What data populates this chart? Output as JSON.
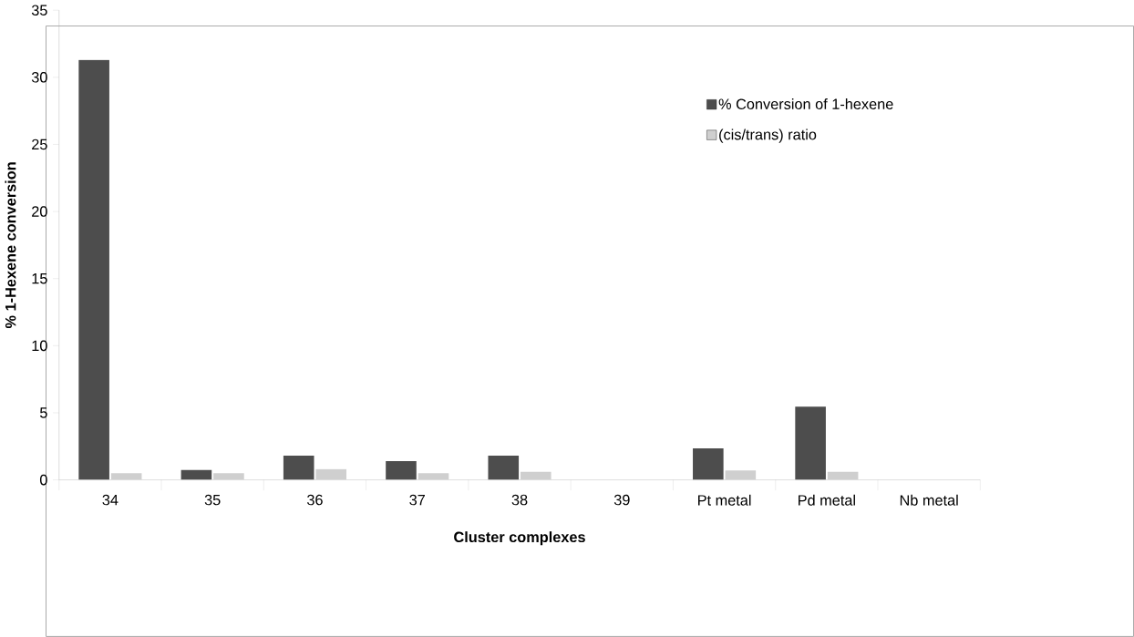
{
  "chart_data": {
    "type": "bar",
    "xlabel": "Cluster complexes",
    "ylabel": "% 1-Hexene conversion",
    "categories": [
      "34",
      "35",
      "36",
      "37",
      "38",
      "39",
      "Pt metal",
      "Pd metal",
      "Nb metal"
    ],
    "series": [
      {
        "name": "% Conversion of 1-hexene",
        "color": "#4d4d4d",
        "values": [
          31.3,
          0.73,
          1.8,
          1.4,
          1.8,
          0,
          2.35,
          5.45,
          0
        ]
      },
      {
        "name": "(cis/trans) ratio",
        "color": "#cfcfcf",
        "values": [
          0.5,
          0.5,
          0.8,
          0.5,
          0.6,
          0,
          0.7,
          0.6,
          0
        ]
      }
    ],
    "ylim": [
      0,
      35
    ],
    "yticks": [
      0,
      5,
      10,
      15,
      20,
      25,
      30,
      35
    ],
    "grid": false,
    "legend": "right"
  }
}
